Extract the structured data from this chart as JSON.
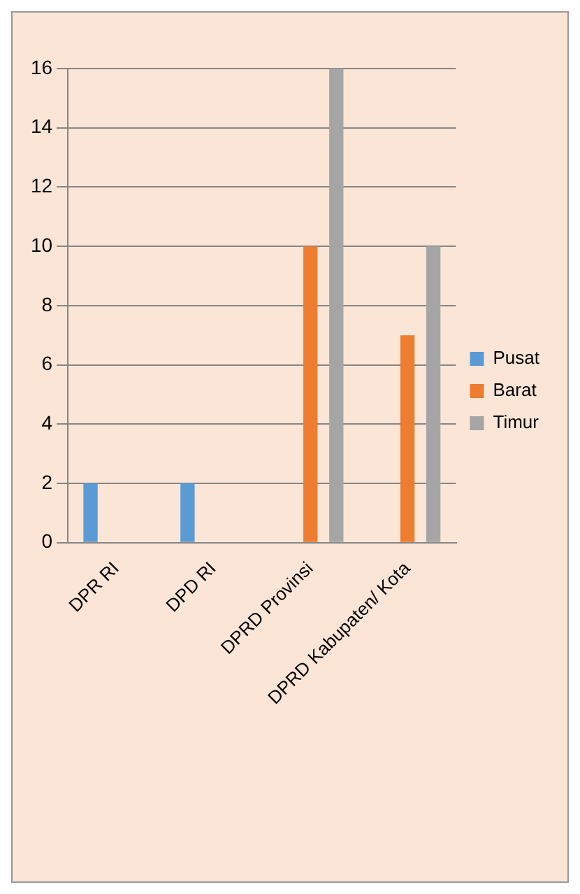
{
  "chart_data": {
    "type": "bar",
    "categories": [
      "DPR RI",
      "DPD RI",
      "DPRD Provinsi",
      "DPRD Kabupaten/ Kota"
    ],
    "series": [
      {
        "name": "Pusat",
        "color": "#5b9bd5",
        "values": [
          2,
          2,
          0,
          0
        ]
      },
      {
        "name": "Barat",
        "color": "#ed7d31",
        "values": [
          0,
          0,
          10,
          7
        ]
      },
      {
        "name": "Timur",
        "color": "#a5a5a5",
        "values": [
          0,
          0,
          16,
          10
        ]
      }
    ],
    "ylim": [
      0,
      16
    ],
    "yticks": [
      0,
      2,
      4,
      6,
      8,
      10,
      12,
      14,
      16
    ],
    "grid": "y",
    "legend": "right"
  }
}
